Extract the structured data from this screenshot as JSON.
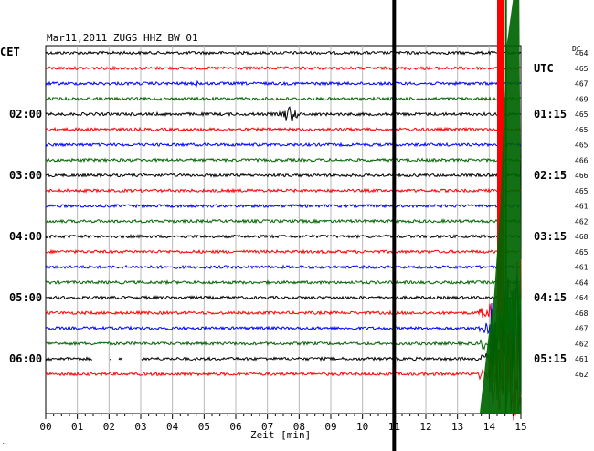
{
  "header": {
    "title": "Mar11,2011   ZUGS HHZ BW 01",
    "left_zone": "CET",
    "right_zone": "UTC",
    "dc_label": "DC"
  },
  "chart_data": {
    "type": "line",
    "title": "Mar11,2011   ZUGS HHZ BW 01",
    "xlabel": "Zeit [min]",
    "xlim": [
      0,
      15
    ],
    "x_ticks": [
      "00",
      "01",
      "02",
      "03",
      "04",
      "05",
      "06",
      "07",
      "08",
      "09",
      "10",
      "11",
      "12",
      "13",
      "14",
      "15"
    ],
    "left_time_labels": [
      {
        "row": 4,
        "text": "02:00"
      },
      {
        "row": 8,
        "text": "03:00"
      },
      {
        "row": 12,
        "text": "04:00"
      },
      {
        "row": 16,
        "text": "05:00"
      },
      {
        "row": 20,
        "text": "06:00"
      }
    ],
    "right_time_labels": [
      {
        "row": 1,
        "text": "UTC"
      },
      {
        "row": 4,
        "text": "01:15"
      },
      {
        "row": 8,
        "text": "02:15"
      },
      {
        "row": 12,
        "text": "03:15"
      },
      {
        "row": 16,
        "text": "04:15"
      },
      {
        "row": 20,
        "text": "05:15"
      }
    ],
    "dc_offsets": [
      464,
      465,
      467,
      469,
      465,
      465,
      465,
      466,
      466,
      465,
      461,
      462,
      468,
      465,
      461,
      464,
      464,
      468,
      467,
      462,
      461,
      462
    ],
    "trace_colors": [
      "#000000",
      "#ff0000",
      "#0000ff",
      "#006400"
    ],
    "marker_minute": 11,
    "events": [
      {
        "row": 2,
        "minute": 4.8,
        "amplitude": "small"
      },
      {
        "row": 4,
        "minute": 7.7,
        "amplitude": "medium"
      },
      {
        "row": 17,
        "minute": 14.0,
        "amplitude": "large"
      },
      {
        "row": 18,
        "minute": 14.0,
        "amplitude": "large"
      },
      {
        "row": 19,
        "minute": 14.0,
        "amplitude": "large"
      },
      {
        "row": 20,
        "minute": 14.0,
        "amplitude": "large"
      },
      {
        "row": 21,
        "minute": 14.0,
        "amplitude": "large"
      }
    ],
    "data_gaps": [
      {
        "row": 20,
        "from": 1.5,
        "to": 2.0
      },
      {
        "row": 20,
        "from": 2.05,
        "to": 2.3
      },
      {
        "row": 20,
        "from": 2.4,
        "to": 3.0
      }
    ],
    "grid": true
  }
}
